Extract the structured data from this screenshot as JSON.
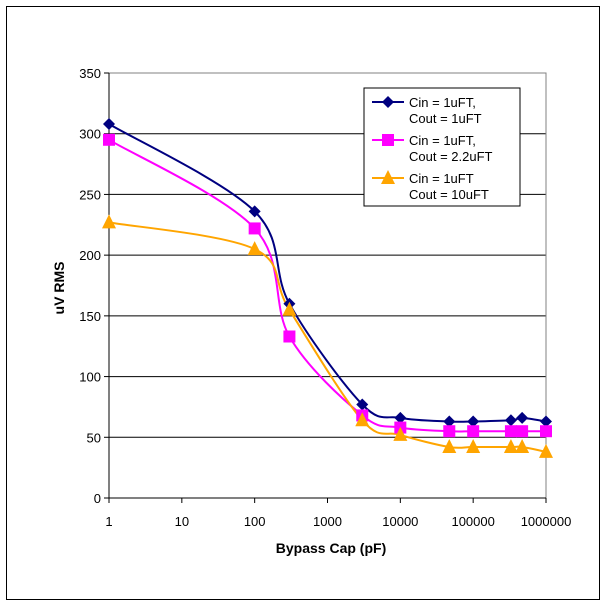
{
  "chart_data": {
    "type": "line",
    "title": "",
    "xlabel": "Bypass Cap (pF)",
    "ylabel": "uV RMS",
    "x_scale": "log",
    "xlim": [
      1,
      1000000
    ],
    "ylim": [
      0,
      350
    ],
    "x_ticks": [
      1,
      10,
      100,
      1000,
      10000,
      100000,
      1000000
    ],
    "x_tick_labels": [
      "1",
      "10",
      "100",
      "1000",
      "10000",
      "100000",
      "1000000"
    ],
    "y_ticks": [
      0,
      50,
      100,
      150,
      200,
      250,
      300,
      350
    ],
    "y_tick_labels": [
      "0",
      "50",
      "100",
      "150",
      "200",
      "250",
      "300",
      "350"
    ],
    "grid": "horizontal",
    "legend_position": "top-right",
    "series": [
      {
        "name": "Cin = 1uFT, Cout = 1uFT",
        "label_lines": [
          "Cin = 1uFT,",
          "Cout = 1uFT"
        ],
        "color": "#000080",
        "marker": "diamond",
        "x": [
          1,
          100,
          300,
          3000,
          10000,
          47000,
          100000,
          330000,
          470000,
          1000000
        ],
        "y": [
          308,
          236,
          160,
          77,
          66,
          63,
          63,
          64,
          66,
          63
        ]
      },
      {
        "name": "Cin = 1uFT, Cout = 2.2uFT",
        "label_lines": [
          "Cin = 1uFT,",
          "Cout = 2.2uFT"
        ],
        "color": "#ff00ff",
        "marker": "square",
        "x": [
          1,
          100,
          300,
          3000,
          10000,
          47000,
          100000,
          330000,
          470000,
          1000000
        ],
        "y": [
          295,
          222,
          133,
          68,
          58,
          55,
          55,
          55,
          55,
          55
        ]
      },
      {
        "name": "Cin = 1uFT Cout = 10uFT",
        "label_lines": [
          "Cin = 1uFT",
          "Cout = 10uFT"
        ],
        "color": "#ffa500",
        "marker": "triangle",
        "x": [
          1,
          100,
          300,
          3000,
          10000,
          47000,
          100000,
          330000,
          470000,
          1000000
        ],
        "y": [
          227,
          205,
          155,
          64,
          52,
          42,
          42,
          42,
          42,
          38
        ]
      }
    ]
  }
}
